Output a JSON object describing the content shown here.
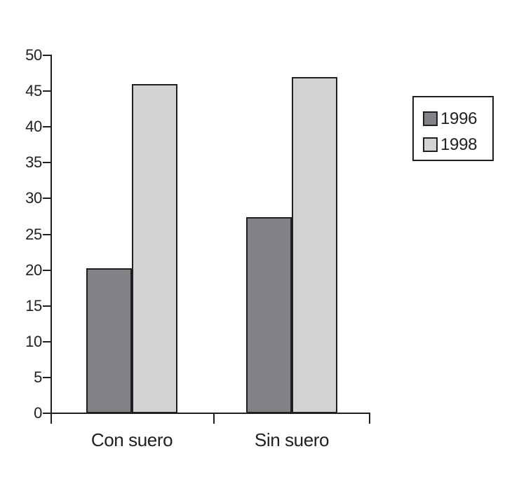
{
  "chart_data": {
    "type": "bar",
    "categories": [
      "Con suero",
      "Sin suero"
    ],
    "series": [
      {
        "name": "1996",
        "color": "#808285",
        "values": [
          20.3,
          27.4
        ]
      },
      {
        "name": "1998",
        "color": "#d1d3d4",
        "values": [
          46,
          47
        ]
      }
    ],
    "xlabel": "",
    "ylabel": "",
    "ylim": [
      0,
      50
    ],
    "ytick_step": 5,
    "ytick_labels": [
      "0",
      "5",
      "10",
      "15",
      "20",
      "25",
      "30",
      "35",
      "40",
      "45",
      "50"
    ],
    "grid": false,
    "legend_position": "top-right",
    "colors": {
      "line": "#231f20",
      "text": "#231f20",
      "background": "#ffffff"
    }
  }
}
